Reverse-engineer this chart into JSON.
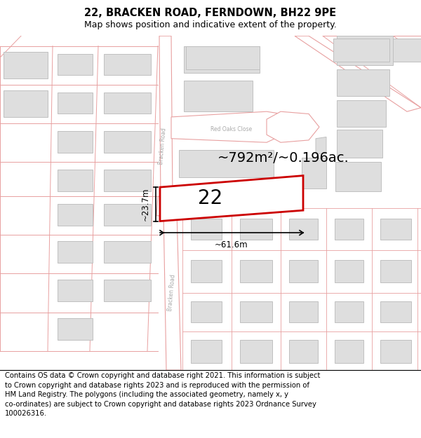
{
  "title": "22, BRACKEN ROAD, FERNDOWN, BH22 9PE",
  "subtitle": "Map shows position and indicative extent of the property.",
  "footer": "Contains OS data © Crown copyright and database right 2021. This information is subject\nto Crown copyright and database rights 2023 and is reproduced with the permission of\nHM Land Registry. The polygons (including the associated geometry, namely x, y\nco-ordinates) are subject to Crown copyright and database rights 2023 Ordnance Survey\n100026316.",
  "area_label": "~792m²/~0.196ac.",
  "width_label": "~61.6m",
  "height_label": "~23.7m",
  "number_label": "22",
  "bg_color": "#ffffff",
  "map_bg": "#f7f7f7",
  "road_color": "#e8a0a0",
  "road_fill": "#ffffff",
  "building_fill": "#dedede",
  "building_edge": "#c0c0c0",
  "highlight_color": "#cc0000",
  "road_label_color": "#aaaaaa",
  "title_fontsize": 10.5,
  "subtitle_fontsize": 9,
  "footer_fontsize": 7.2,
  "area_fontsize": 14,
  "number_fontsize": 20,
  "dim_fontsize": 8.5,
  "road_label_fontsize": 5.5
}
